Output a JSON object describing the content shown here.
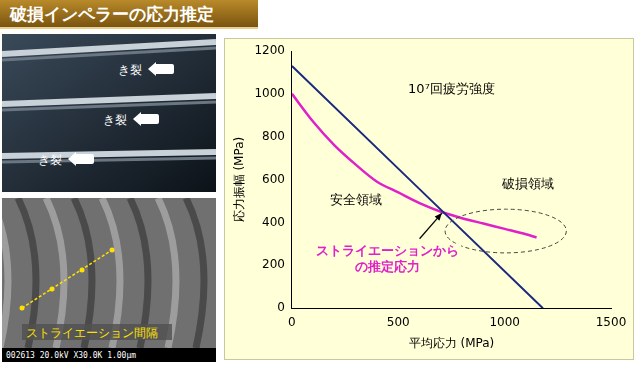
{
  "header": {
    "title": "破損インペラーの応力推定"
  },
  "photos": [
    {
      "labels": [
        "き裂",
        "き裂",
        "き裂"
      ]
    },
    {
      "label": "ストライエーション間隔",
      "caption": "002613 20.0kV X30.0K 1.00μm"
    }
  ],
  "chart_data": {
    "type": "line",
    "x_label": "平均応力 (MPa)",
    "y_label": "応力振幅 (MPa)",
    "xlim": [
      0,
      1500
    ],
    "xticks": [
      0,
      500,
      1000,
      1500
    ],
    "ylim": [
      0,
      1200
    ],
    "yticks": [
      0,
      200,
      400,
      600,
      800,
      1000,
      1200
    ],
    "grid": false,
    "series": [
      {
        "name": "10⁷回疲労強度",
        "color": "#1c2a80",
        "x": [
          0,
          1180
        ],
        "values": [
          1130,
          0
        ]
      },
      {
        "name": "ストライエーションからの推定応力",
        "color": "#e020c8",
        "x": [
          0,
          100,
          200,
          300,
          400,
          500,
          600,
          700,
          800,
          900,
          1000,
          1100,
          1150
        ],
        "values": [
          1000,
          870,
          760,
          670,
          590,
          540,
          490,
          450,
          420,
          395,
          370,
          345,
          330
        ]
      }
    ],
    "annotations": [
      {
        "text": "安全領域"
      },
      {
        "text": "破損領域"
      }
    ]
  }
}
